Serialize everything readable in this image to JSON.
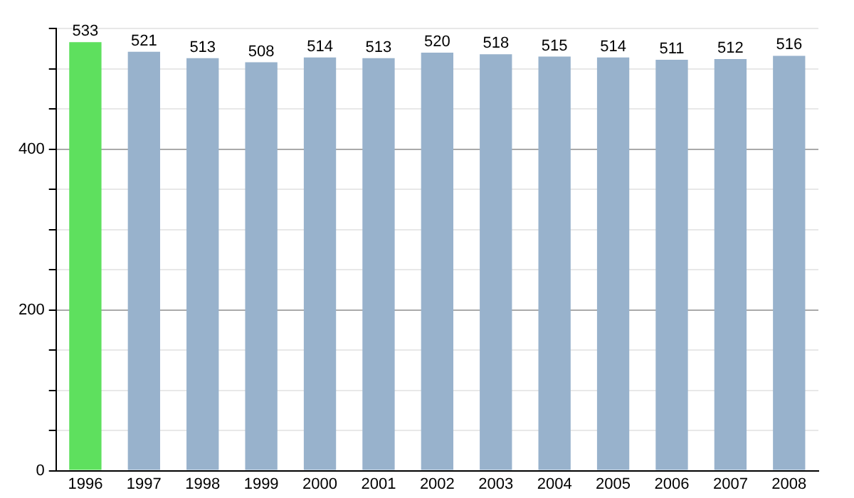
{
  "chart_data": {
    "type": "bar",
    "categories": [
      "1996",
      "1997",
      "1998",
      "1999",
      "2000",
      "2001",
      "2002",
      "2003",
      "2004",
      "2005",
      "2006",
      "2007",
      "2008"
    ],
    "values": [
      533,
      521,
      513,
      508,
      514,
      513,
      520,
      518,
      515,
      514,
      511,
      512,
      516
    ],
    "colors": [
      "#5ee05e",
      "#98b2cc",
      "#98b2cc",
      "#98b2cc",
      "#98b2cc",
      "#98b2cc",
      "#98b2cc",
      "#98b2cc",
      "#98b2cc",
      "#98b2cc",
      "#98b2cc",
      "#98b2cc",
      "#98b2cc"
    ],
    "ylim": [
      0,
      550
    ],
    "yticks": [
      0,
      {
        "value": 50,
        "label": null
      },
      {
        "value": 100,
        "label": null
      },
      {
        "value": 150,
        "label": null
      },
      200,
      {
        "value": 250,
        "label": null
      },
      {
        "value": 300,
        "label": null
      },
      {
        "value": 350,
        "label": null
      },
      400,
      {
        "value": 450,
        "label": null
      },
      {
        "value": 500,
        "label": null
      },
      {
        "value": 550,
        "label": null
      }
    ],
    "grid": "y",
    "data_labels": true,
    "legend": false
  }
}
